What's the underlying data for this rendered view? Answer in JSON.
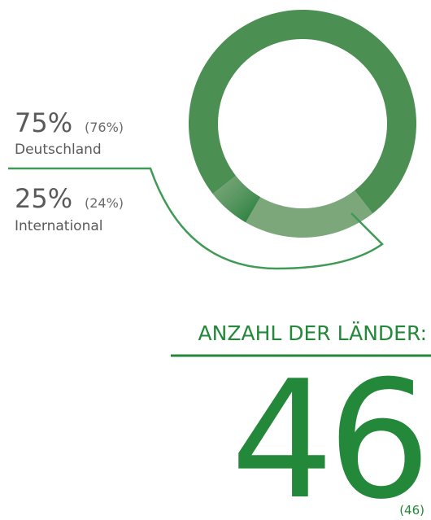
{
  "chart_data": {
    "type": "donut",
    "categories": [
      "Deutschland",
      "International"
    ],
    "values": [
      75,
      25
    ],
    "value_labels": [
      "75%",
      "25%"
    ],
    "previous_labels": [
      "(76%)",
      "(24%)"
    ],
    "colors": [
      "#4b8f53",
      "#7ba77b"
    ]
  },
  "stat": {
    "title": "ANZAHL DER LÄNDER:",
    "value": "46",
    "previous": "(46)",
    "color": "#23883a"
  }
}
